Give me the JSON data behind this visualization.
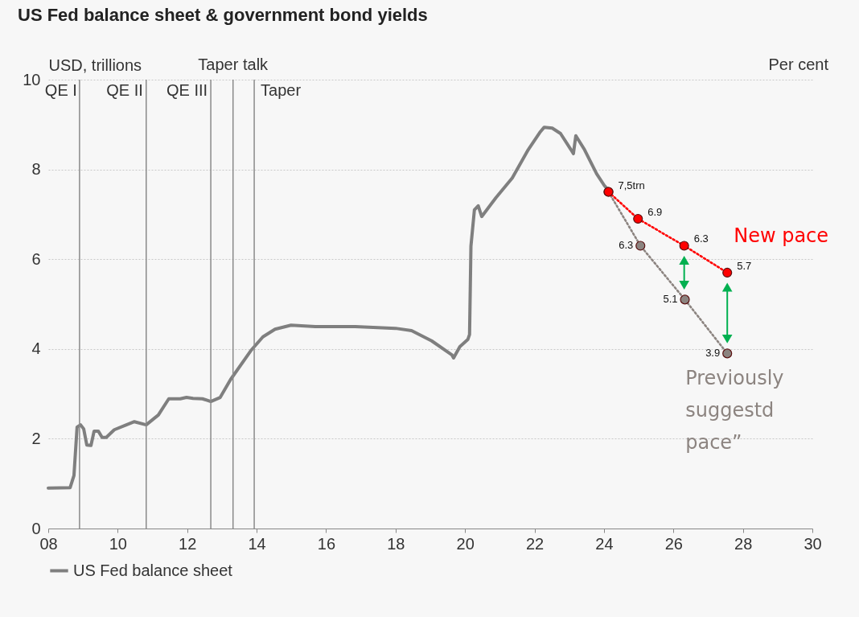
{
  "chart_data": {
    "type": "line",
    "title": "US Fed balance sheet & government bond yields",
    "ylabel": "USD, trillions",
    "y2label": "Per cent",
    "xlim": [
      2008,
      2030
    ],
    "xticks": [
      {
        "value": 2008,
        "label": "08"
      },
      {
        "value": 2010,
        "label": "10"
      },
      {
        "value": 2012,
        "label": "12"
      },
      {
        "value": 2014,
        "label": "14"
      },
      {
        "value": 2016,
        "label": "16"
      },
      {
        "value": 2018,
        "label": "18"
      },
      {
        "value": 2020,
        "label": "20"
      },
      {
        "value": 2022,
        "label": "22"
      },
      {
        "value": 2024,
        "label": "24"
      },
      {
        "value": 2026,
        "label": "26"
      },
      {
        "value": 2028,
        "label": "28"
      },
      {
        "value": 2030,
        "label": "30"
      }
    ],
    "ylim": [
      0,
      10
    ],
    "yticks": [
      0,
      2,
      4,
      6,
      8,
      10
    ],
    "grid": "y",
    "legend": "bottom",
    "ref_lines": [
      {
        "axis": "x",
        "value": 2008.9,
        "label": "QE I"
      },
      {
        "axis": "x",
        "value": 2010.82,
        "label": "QE II"
      },
      {
        "axis": "x",
        "value": 2012.68,
        "label": "QE III"
      },
      {
        "axis": "x",
        "value": 2013.32,
        "label": "Taper talk"
      },
      {
        "axis": "x",
        "value": 2013.93,
        "label": "Taper"
      }
    ],
    "series": [
      {
        "name": "US Fed balance sheet",
        "color": "#7f7f7f",
        "line_style": "solid",
        "x": [
          2008.0,
          2008.63,
          2008.74,
          2008.83,
          2008.93,
          2009.02,
          2009.11,
          2009.23,
          2009.32,
          2009.44,
          2009.55,
          2009.67,
          2009.9,
          2010.25,
          2010.48,
          2010.82,
          2011.17,
          2011.47,
          2011.8,
          2011.98,
          2012.17,
          2012.44,
          2012.68,
          2012.95,
          2013.25,
          2013.83,
          2014.18,
          2014.53,
          2014.99,
          2015.69,
          2016.84,
          2018.0,
          2018.46,
          2019.04,
          2019.62,
          2019.67,
          2019.85,
          2020.08,
          2020.13,
          2020.17,
          2020.27,
          2020.38,
          2020.48,
          2020.89,
          2021.36,
          2021.82,
          2022.17,
          2022.28,
          2022.51,
          2022.75,
          2023.05,
          2023.12,
          2023.19,
          2023.44,
          2023.79,
          2024.02,
          2024.13
        ],
        "values": [
          0.9,
          0.91,
          1.18,
          2.26,
          2.31,
          2.22,
          1.86,
          1.85,
          2.17,
          2.17,
          2.03,
          2.03,
          2.2,
          2.31,
          2.38,
          2.31,
          2.53,
          2.89,
          2.89,
          2.92,
          2.9,
          2.89,
          2.83,
          2.92,
          3.32,
          3.96,
          4.27,
          4.44,
          4.53,
          4.5,
          4.5,
          4.46,
          4.41,
          4.18,
          3.87,
          3.8,
          4.05,
          4.21,
          4.32,
          6.29,
          7.1,
          7.19,
          6.95,
          7.37,
          7.81,
          8.44,
          8.84,
          8.94,
          8.92,
          8.8,
          8.44,
          8.35,
          8.75,
          8.44,
          7.9,
          7.63,
          7.54
        ]
      },
      {
        "name": "Previously suggestd pace”",
        "color": "#8c8480",
        "line_style": "dotted",
        "marker": "circle",
        "x": [
          2024.13,
          2025.05,
          2026.33,
          2027.55
        ],
        "values": [
          7.5,
          6.3,
          5.1,
          3.9
        ],
        "value_labels": [
          null,
          "6.3",
          "5.1",
          "3.9"
        ]
      },
      {
        "name": "New pace",
        "color": "#ff0000",
        "line_style": "dotted",
        "marker": "circle",
        "x": [
          2024.13,
          2024.98,
          2026.31,
          2027.55
        ],
        "values": [
          7.5,
          6.9,
          6.3,
          5.7
        ],
        "value_labels": [
          "7,5trn",
          "6.9",
          "6.3",
          "5.7"
        ]
      }
    ]
  }
}
